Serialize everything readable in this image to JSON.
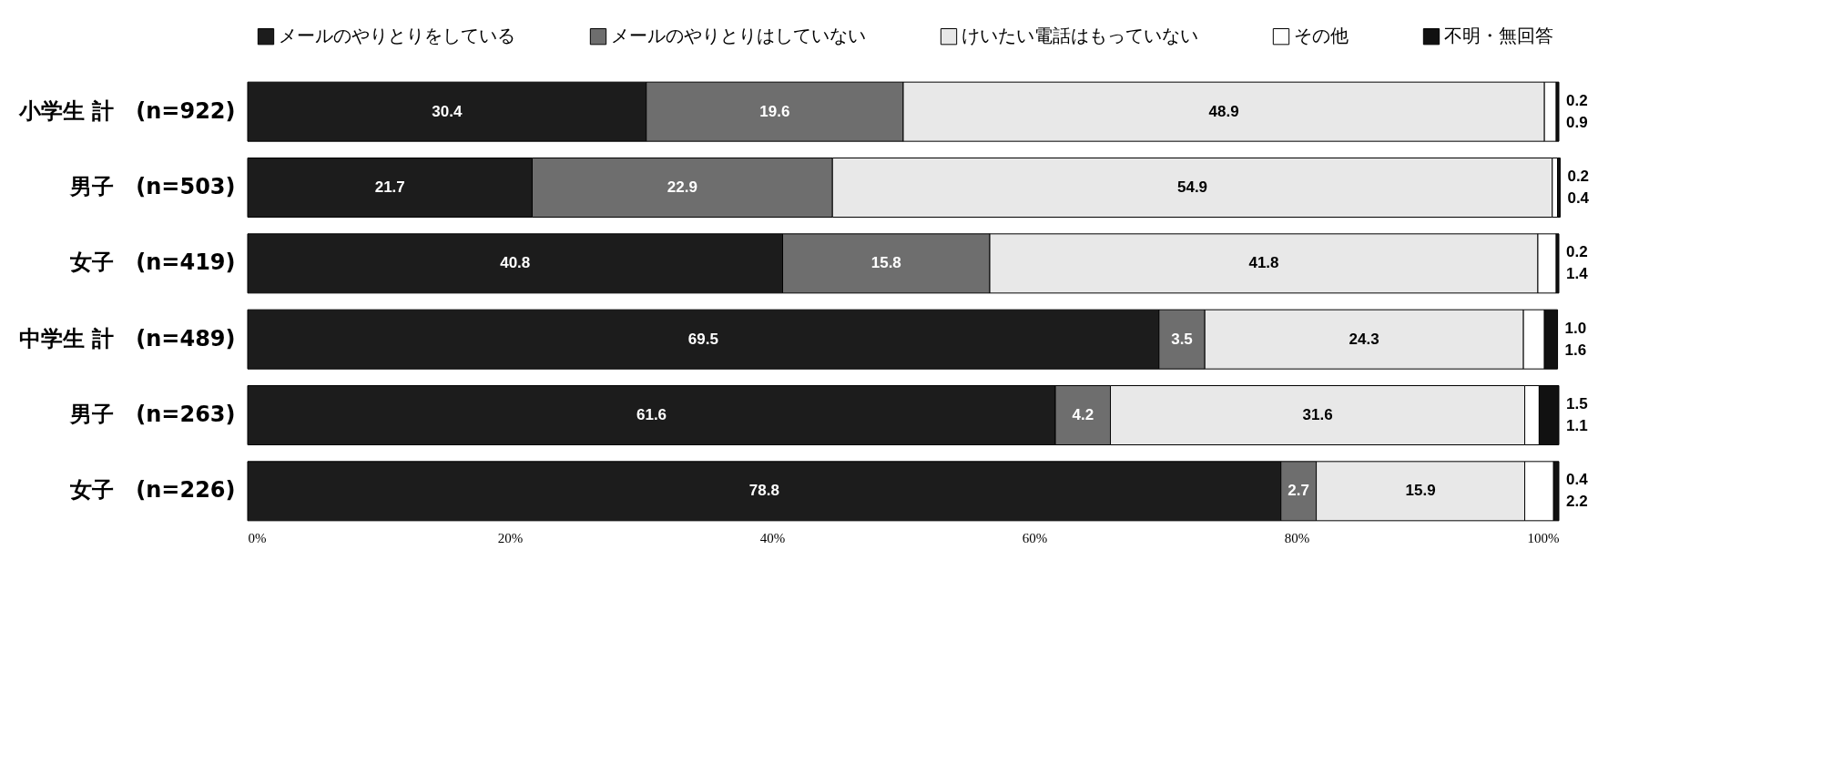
{
  "chart_data": {
    "type": "bar",
    "orientation": "horizontal",
    "stacked": true,
    "data_labels": true,
    "legend": "top",
    "grid": false,
    "categories": [
      "小学生 計　(n=922)",
      "男子　(n=503)",
      "女子　(n=419)",
      "中学生 計　(n=489)",
      "男子　(n=263)",
      "女子　(n=226)"
    ],
    "series": [
      {
        "name": "メールのやりとりをしている",
        "color": "#1c1c1c",
        "values": [
          30.4,
          21.7,
          40.8,
          69.5,
          61.6,
          78.8
        ]
      },
      {
        "name": "メールのやりとりはしていない",
        "color": "#6e6e6e",
        "values": [
          19.6,
          22.9,
          15.8,
          3.5,
          4.2,
          2.7
        ]
      },
      {
        "name": "けいたい電話はもっていない",
        "color": "#e8e8e8",
        "values": [
          48.9,
          54.9,
          41.8,
          24.3,
          31.6,
          15.9
        ]
      },
      {
        "name": "その他",
        "color": "#ffffff",
        "values": [
          0.9,
          0.4,
          1.4,
          1.6,
          1.1,
          2.2
        ]
      },
      {
        "name": "不明・無回答",
        "color": "#111111",
        "values": [
          0.2,
          0.2,
          0.2,
          1.0,
          1.5,
          0.4
        ],
        "value_labels": [
          "0.2",
          "0.2",
          "0.2",
          "1.0",
          "1.5",
          "0.4"
        ]
      }
    ],
    "xlim": [
      0,
      100
    ],
    "xticks": [
      {
        "value": 0,
        "label": "0%"
      },
      {
        "value": 20,
        "label": "20%"
      },
      {
        "value": 40,
        "label": "40%"
      },
      {
        "value": 60,
        "label": "60%"
      },
      {
        "value": 80,
        "label": "80%"
      },
      {
        "value": 100,
        "label": "100%"
      }
    ]
  }
}
